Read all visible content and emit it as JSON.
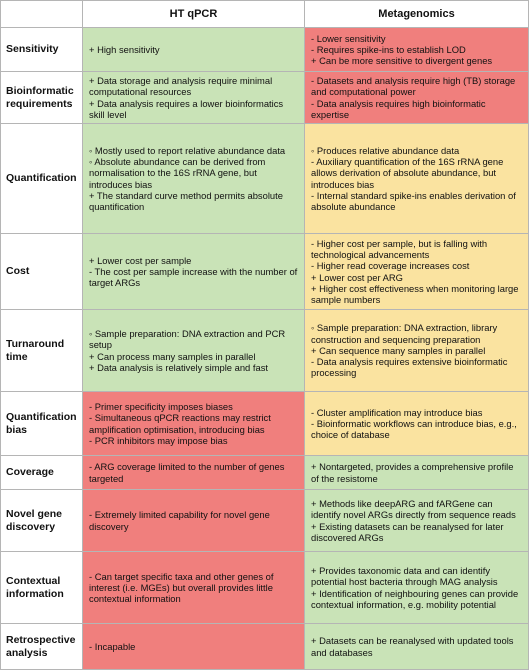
{
  "headers": [
    "",
    "HT qPCR",
    "Metagenomics"
  ],
  "colors": {
    "green": "#c9e3b7",
    "red": "#f07f7d",
    "yellow": "#fae3a0"
  },
  "rows": [
    {
      "label": "Sensitivity",
      "qpcr": {
        "color": "green",
        "lines": [
          "+ High sensitivity"
        ]
      },
      "meta": {
        "color": "red",
        "lines": [
          "- Lower sensitivity",
          "- Requires spike-ins to establish LOD",
          "+ Can be more sensitive to divergent genes"
        ]
      }
    },
    {
      "label": "Bioinformatic requirements",
      "qpcr": {
        "color": "green",
        "lines": [
          "+ Data storage and analysis require minimal computational resources",
          "+ Data analysis requires a lower bioinformatics skill level"
        ]
      },
      "meta": {
        "color": "red",
        "lines": [
          "- Datasets and analysis require high (TB) storage and computational power",
          "- Data analysis requires high bioinformatic expertise"
        ]
      }
    },
    {
      "label": "Quantification",
      "qpcr": {
        "color": "green",
        "lines": [
          "◦ Mostly used to report relative abundance data",
          "◦ Absolute abundance can be derived from normalisation to the 16S rRNA gene, but introduces bias",
          "+ The standard curve method permits absolute quantification"
        ]
      },
      "meta": {
        "color": "yellow",
        "lines": [
          "◦ Produces relative abundance data",
          "- Auxiliary quantification of the 16S rRNA gene allows derivation of absolute abundance, but introduces bias",
          "- Internal standard spike-ins enables derivation of absolute abundance"
        ]
      }
    },
    {
      "label": "Cost",
      "qpcr": {
        "color": "green",
        "lines": [
          "+ Lower cost per sample",
          "- The cost per sample increase with the number of target ARGs"
        ]
      },
      "meta": {
        "color": "yellow",
        "lines": [
          "- Higher cost per sample, but is falling with technological advancements",
          "- Higher read coverage increases cost",
          "+ Lower cost per ARG",
          "+ Higher cost effectiveness when monitoring large sample numbers"
        ]
      }
    },
    {
      "label": "Turnaround time",
      "qpcr": {
        "color": "green",
        "lines": [
          "◦ Sample preparation: DNA extraction and PCR setup",
          "+ Can process many samples in parallel",
          "+ Data analysis is relatively simple and fast"
        ]
      },
      "meta": {
        "color": "yellow",
        "lines": [
          "◦ Sample preparation: DNA extraction, library construction and sequencing preparation",
          "+ Can sequence many samples in parallel",
          "- Data analysis requires extensive bioinformatic processing"
        ]
      }
    },
    {
      "label": "Quantification bias",
      "qpcr": {
        "color": "red",
        "lines": [
          "- Primer specificity imposes biases",
          "- Simultaneous qPCR reactions may restrict amplification optimisation, introducing bias",
          "- PCR inhibitors may impose bias"
        ]
      },
      "meta": {
        "color": "yellow",
        "lines": [
          "- Cluster amplification may introduce bias",
          "- Bioinformatic workflows can introduce bias, e.g., choice of database"
        ]
      }
    },
    {
      "label": "Coverage",
      "qpcr": {
        "color": "red",
        "lines": [
          "- ARG coverage limited to the number of genes targeted"
        ]
      },
      "meta": {
        "color": "green",
        "lines": [
          "+ Nontargeted, provides a comprehensive profile of the resistome"
        ]
      }
    },
    {
      "label": "Novel gene discovery",
      "qpcr": {
        "color": "red",
        "lines": [
          "- Extremely limited capability for novel gene discovery"
        ]
      },
      "meta": {
        "color": "green",
        "lines": [
          "+ Methods like deepARG and fARGene can identify novel ARGs directly from sequence reads",
          "+ Existing datasets can be reanalysed for later discovered ARGs"
        ]
      }
    },
    {
      "label": "Contextual information",
      "qpcr": {
        "color": "red",
        "lines": [
          "- Can target specific taxa and other genes of interest (i.e. MGEs) but overall provides little contextual information"
        ]
      },
      "meta": {
        "color": "green",
        "lines": [
          "+ Provides taxonomic data and can identify potential host bacteria through MAG analysis",
          "+ Identification of neighbouring genes can provide contextual information, e.g. mobility potential"
        ]
      }
    },
    {
      "label": "Retrospective analysis",
      "qpcr": {
        "color": "red",
        "lines": [
          "- Incapable"
        ]
      },
      "meta": {
        "color": "green",
        "lines": [
          "+ Datasets can be reanalysed with updated tools and databases"
        ]
      }
    }
  ]
}
